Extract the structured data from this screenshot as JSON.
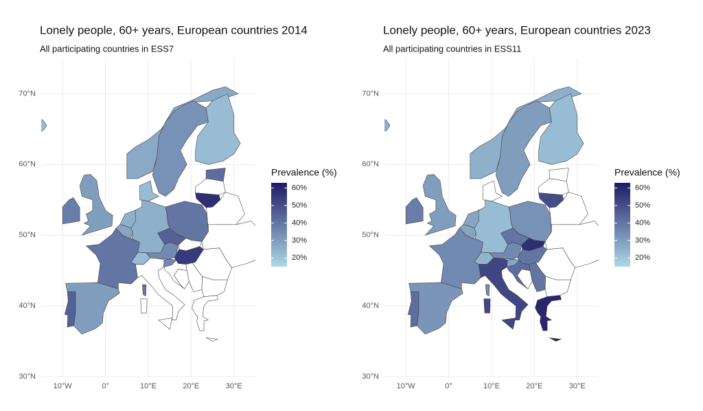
{
  "chart_data": [
    {
      "type": "choropleth",
      "title": "Lonely people, 60+ years, European countries 2014",
      "subtitle": "All participating countries in ESS7",
      "legend_title": "Prevalence (%)",
      "values": [
        27,
        33,
        22,
        22,
        30,
        38,
        40,
        30,
        45,
        25,
        25,
        28,
        22,
        35,
        45,
        40,
        55,
        35,
        42,
        58,
        22
      ],
      "colorlim": [
        15,
        63
      ],
      "legend_ticks": [
        {
          "value": 20,
          "label": "20%"
        },
        {
          "value": 30,
          "label": "30%"
        },
        {
          "value": 40,
          "label": "40%"
        },
        {
          "value": 50,
          "label": "50%"
        },
        {
          "value": 60,
          "label": "60%"
        }
      ],
      "low_color": "#add8e6",
      "high_color": "#1f1a66",
      "xlim": [
        -15,
        35
      ],
      "ylim": [
        30,
        75
      ],
      "xticks": [
        {
          "value": -10,
          "label": "10°W"
        },
        {
          "value": 0,
          "label": "0°"
        },
        {
          "value": 10,
          "label": "10°E"
        },
        {
          "value": 20,
          "label": "20°E"
        },
        {
          "value": 30,
          "label": "30°E"
        }
      ],
      "yticks": [
        {
          "value": 30,
          "label": "30°N"
        },
        {
          "value": 40,
          "label": "40°N"
        },
        {
          "value": 50,
          "label": "50°N"
        },
        {
          "value": 60,
          "label": "60°N"
        },
        {
          "value": 70,
          "label": "70°N"
        }
      ],
      "grid": true
    },
    {
      "type": "choropleth",
      "title": "Lonely people, 60+ years, European countries 2023",
      "subtitle": "All participating countries in ESS11",
      "legend_title": "Prevalence (%)",
      "values": [
        25,
        30,
        22,
        30,
        38,
        35,
        32,
        42,
        22,
        28,
        28,
        24,
        35,
        40,
        58,
        33,
        40,
        28,
        42,
        40,
        52,
        60,
        50,
        25
      ],
      "colorlim": [
        15,
        63
      ],
      "legend_ticks": [
        {
          "value": 20,
          "label": "20%"
        },
        {
          "value": 30,
          "label": "30%"
        },
        {
          "value": 40,
          "label": "40%"
        },
        {
          "value": 50,
          "label": "50%"
        },
        {
          "value": 60,
          "label": "60%"
        }
      ],
      "low_color": "#add8e6",
      "high_color": "#1f1a66",
      "xlim": [
        -15,
        35
      ],
      "ylim": [
        30,
        75
      ],
      "xticks": [
        {
          "value": -10,
          "label": "10°W"
        },
        {
          "value": 0,
          "label": "0°"
        },
        {
          "value": 10,
          "label": "10°E"
        },
        {
          "value": 20,
          "label": "20°E"
        },
        {
          "value": 30,
          "label": "30°E"
        }
      ],
      "yticks": [
        {
          "value": 30,
          "label": "30°N"
        },
        {
          "value": 40,
          "label": "40°N"
        },
        {
          "value": 50,
          "label": "50°N"
        },
        {
          "value": 60,
          "label": "60°N"
        },
        {
          "value": 70,
          "label": "70°N"
        }
      ],
      "grid": true
    }
  ]
}
